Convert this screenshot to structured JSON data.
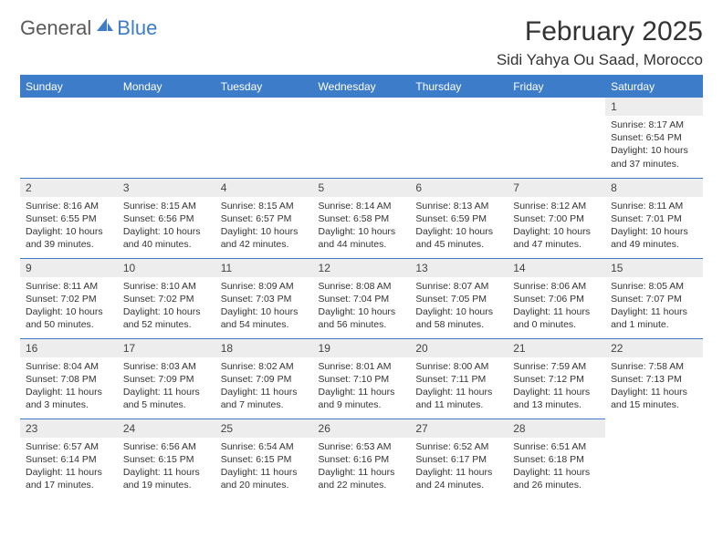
{
  "logo": {
    "part1": "General",
    "part2": "Blue"
  },
  "title": "February 2025",
  "location": "Sidi Yahya Ou Saad, Morocco",
  "colors": {
    "accent": "#3d7cc9",
    "header_bg": "#3d7cc9",
    "header_text": "#ffffff",
    "daynum_bg": "#ededed",
    "text": "#333333",
    "background": "#ffffff"
  },
  "typography": {
    "title_fontsize": 30,
    "location_fontsize": 17,
    "dayheader_fontsize": 12,
    "daynum_fontsize": 12,
    "body_fontsize": 10.5
  },
  "day_headers": [
    "Sunday",
    "Monday",
    "Tuesday",
    "Wednesday",
    "Thursday",
    "Friday",
    "Saturday"
  ],
  "weeks": [
    [
      null,
      null,
      null,
      null,
      null,
      null,
      {
        "n": "1",
        "sunrise": "Sunrise: 8:17 AM",
        "sunset": "Sunset: 6:54 PM",
        "daylight": "Daylight: 10 hours and 37 minutes."
      }
    ],
    [
      {
        "n": "2",
        "sunrise": "Sunrise: 8:16 AM",
        "sunset": "Sunset: 6:55 PM",
        "daylight": "Daylight: 10 hours and 39 minutes."
      },
      {
        "n": "3",
        "sunrise": "Sunrise: 8:15 AM",
        "sunset": "Sunset: 6:56 PM",
        "daylight": "Daylight: 10 hours and 40 minutes."
      },
      {
        "n": "4",
        "sunrise": "Sunrise: 8:15 AM",
        "sunset": "Sunset: 6:57 PM",
        "daylight": "Daylight: 10 hours and 42 minutes."
      },
      {
        "n": "5",
        "sunrise": "Sunrise: 8:14 AM",
        "sunset": "Sunset: 6:58 PM",
        "daylight": "Daylight: 10 hours and 44 minutes."
      },
      {
        "n": "6",
        "sunrise": "Sunrise: 8:13 AM",
        "sunset": "Sunset: 6:59 PM",
        "daylight": "Daylight: 10 hours and 45 minutes."
      },
      {
        "n": "7",
        "sunrise": "Sunrise: 8:12 AM",
        "sunset": "Sunset: 7:00 PM",
        "daylight": "Daylight: 10 hours and 47 minutes."
      },
      {
        "n": "8",
        "sunrise": "Sunrise: 8:11 AM",
        "sunset": "Sunset: 7:01 PM",
        "daylight": "Daylight: 10 hours and 49 minutes."
      }
    ],
    [
      {
        "n": "9",
        "sunrise": "Sunrise: 8:11 AM",
        "sunset": "Sunset: 7:02 PM",
        "daylight": "Daylight: 10 hours and 50 minutes."
      },
      {
        "n": "10",
        "sunrise": "Sunrise: 8:10 AM",
        "sunset": "Sunset: 7:02 PM",
        "daylight": "Daylight: 10 hours and 52 minutes."
      },
      {
        "n": "11",
        "sunrise": "Sunrise: 8:09 AM",
        "sunset": "Sunset: 7:03 PM",
        "daylight": "Daylight: 10 hours and 54 minutes."
      },
      {
        "n": "12",
        "sunrise": "Sunrise: 8:08 AM",
        "sunset": "Sunset: 7:04 PM",
        "daylight": "Daylight: 10 hours and 56 minutes."
      },
      {
        "n": "13",
        "sunrise": "Sunrise: 8:07 AM",
        "sunset": "Sunset: 7:05 PM",
        "daylight": "Daylight: 10 hours and 58 minutes."
      },
      {
        "n": "14",
        "sunrise": "Sunrise: 8:06 AM",
        "sunset": "Sunset: 7:06 PM",
        "daylight": "Daylight: 11 hours and 0 minutes."
      },
      {
        "n": "15",
        "sunrise": "Sunrise: 8:05 AM",
        "sunset": "Sunset: 7:07 PM",
        "daylight": "Daylight: 11 hours and 1 minute."
      }
    ],
    [
      {
        "n": "16",
        "sunrise": "Sunrise: 8:04 AM",
        "sunset": "Sunset: 7:08 PM",
        "daylight": "Daylight: 11 hours and 3 minutes."
      },
      {
        "n": "17",
        "sunrise": "Sunrise: 8:03 AM",
        "sunset": "Sunset: 7:09 PM",
        "daylight": "Daylight: 11 hours and 5 minutes."
      },
      {
        "n": "18",
        "sunrise": "Sunrise: 8:02 AM",
        "sunset": "Sunset: 7:09 PM",
        "daylight": "Daylight: 11 hours and 7 minutes."
      },
      {
        "n": "19",
        "sunrise": "Sunrise: 8:01 AM",
        "sunset": "Sunset: 7:10 PM",
        "daylight": "Daylight: 11 hours and 9 minutes."
      },
      {
        "n": "20",
        "sunrise": "Sunrise: 8:00 AM",
        "sunset": "Sunset: 7:11 PM",
        "daylight": "Daylight: 11 hours and 11 minutes."
      },
      {
        "n": "21",
        "sunrise": "Sunrise: 7:59 AM",
        "sunset": "Sunset: 7:12 PM",
        "daylight": "Daylight: 11 hours and 13 minutes."
      },
      {
        "n": "22",
        "sunrise": "Sunrise: 7:58 AM",
        "sunset": "Sunset: 7:13 PM",
        "daylight": "Daylight: 11 hours and 15 minutes."
      }
    ],
    [
      {
        "n": "23",
        "sunrise": "Sunrise: 6:57 AM",
        "sunset": "Sunset: 6:14 PM",
        "daylight": "Daylight: 11 hours and 17 minutes."
      },
      {
        "n": "24",
        "sunrise": "Sunrise: 6:56 AM",
        "sunset": "Sunset: 6:15 PM",
        "daylight": "Daylight: 11 hours and 19 minutes."
      },
      {
        "n": "25",
        "sunrise": "Sunrise: 6:54 AM",
        "sunset": "Sunset: 6:15 PM",
        "daylight": "Daylight: 11 hours and 20 minutes."
      },
      {
        "n": "26",
        "sunrise": "Sunrise: 6:53 AM",
        "sunset": "Sunset: 6:16 PM",
        "daylight": "Daylight: 11 hours and 22 minutes."
      },
      {
        "n": "27",
        "sunrise": "Sunrise: 6:52 AM",
        "sunset": "Sunset: 6:17 PM",
        "daylight": "Daylight: 11 hours and 24 minutes."
      },
      {
        "n": "28",
        "sunrise": "Sunrise: 6:51 AM",
        "sunset": "Sunset: 6:18 PM",
        "daylight": "Daylight: 11 hours and 26 minutes."
      },
      null
    ]
  ]
}
